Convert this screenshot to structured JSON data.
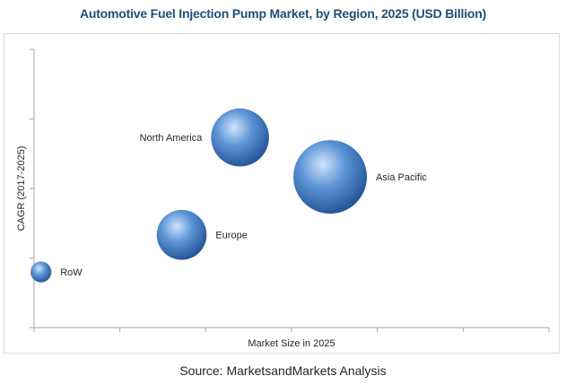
{
  "title": "Automotive Fuel Injection Pump Market, by Region, 2025 (USD Billion)",
  "source": "Source: MarketsandMarkets Analysis",
  "colors": {
    "title": "#1f4e79",
    "bubble_light": "#cfe4fb",
    "bubble_mid": "#5b93d6",
    "bubble_dark": "#1f4f8f",
    "axis": "#a6a6a6",
    "label": "#262626"
  },
  "chart_data": {
    "type": "bubble",
    "title": "Automotive Fuel Injection Pump Market, by Region, 2025 (USD Billion)",
    "xlabel": "Market Size in 2025",
    "ylabel": "CAGR (2017-2025)",
    "xlim": [
      0,
      6
    ],
    "ylim": [
      0,
      6
    ],
    "x_ticks": 6,
    "y_ticks": 4,
    "grid": false,
    "legend": "none",
    "points": [
      {
        "label": "North America",
        "x": 2.4,
        "y": 4.1,
        "size": 0.62,
        "label_side": "left"
      },
      {
        "label": "Asia Pacific",
        "x": 3.45,
        "y": 3.25,
        "size": 1.0,
        "label_side": "right"
      },
      {
        "label": "Europe",
        "x": 1.72,
        "y": 2.0,
        "size": 0.46,
        "label_side": "right"
      },
      {
        "label": "RoW",
        "x": 0.08,
        "y": 1.2,
        "size": 0.08,
        "label_side": "right"
      }
    ]
  }
}
